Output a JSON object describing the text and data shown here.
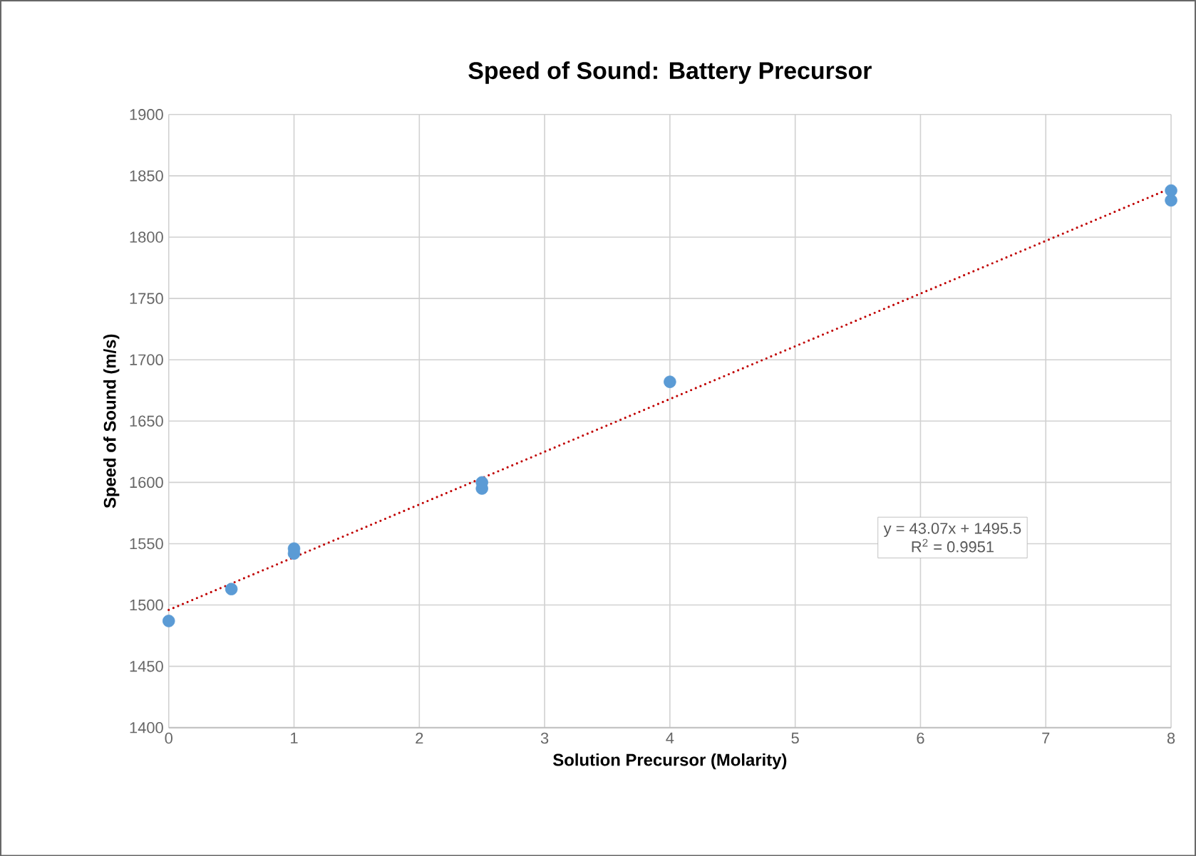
{
  "chart_data": {
    "type": "scatter",
    "title": "Speed of Sound: Battery Precursor",
    "xlabel": "Solution Precursor (Molarity)",
    "ylabel": "Speed of Sound (m/s)",
    "series": [
      {
        "color": "#5b9bd5",
        "marker": "circle",
        "x": [
          0,
          0.5,
          1,
          1,
          2.5,
          2.5,
          4,
          8,
          8
        ],
        "values": [
          1487,
          1513,
          1542,
          1546,
          1595,
          1600,
          1682,
          1830,
          1838
        ]
      },
      {
        "type": "line",
        "color": "#c00000",
        "line_style": "dotted",
        "marker": "none",
        "x": [
          0,
          8
        ],
        "values": [
          1496,
          1840
        ]
      }
    ],
    "xlim": [
      0,
      8
    ],
    "xticks": [
      0,
      1,
      2,
      3,
      4,
      5,
      6,
      7,
      8
    ],
    "ylim": [
      1400,
      1900
    ],
    "yticks": [
      1400,
      1450,
      1500,
      1550,
      1600,
      1650,
      1700,
      1750,
      1800,
      1850,
      1900
    ],
    "grid": true,
    "annotations": [
      "y = 43.07x + 1495.5",
      "R$^{2}$ = 0.9951"
    ]
  }
}
